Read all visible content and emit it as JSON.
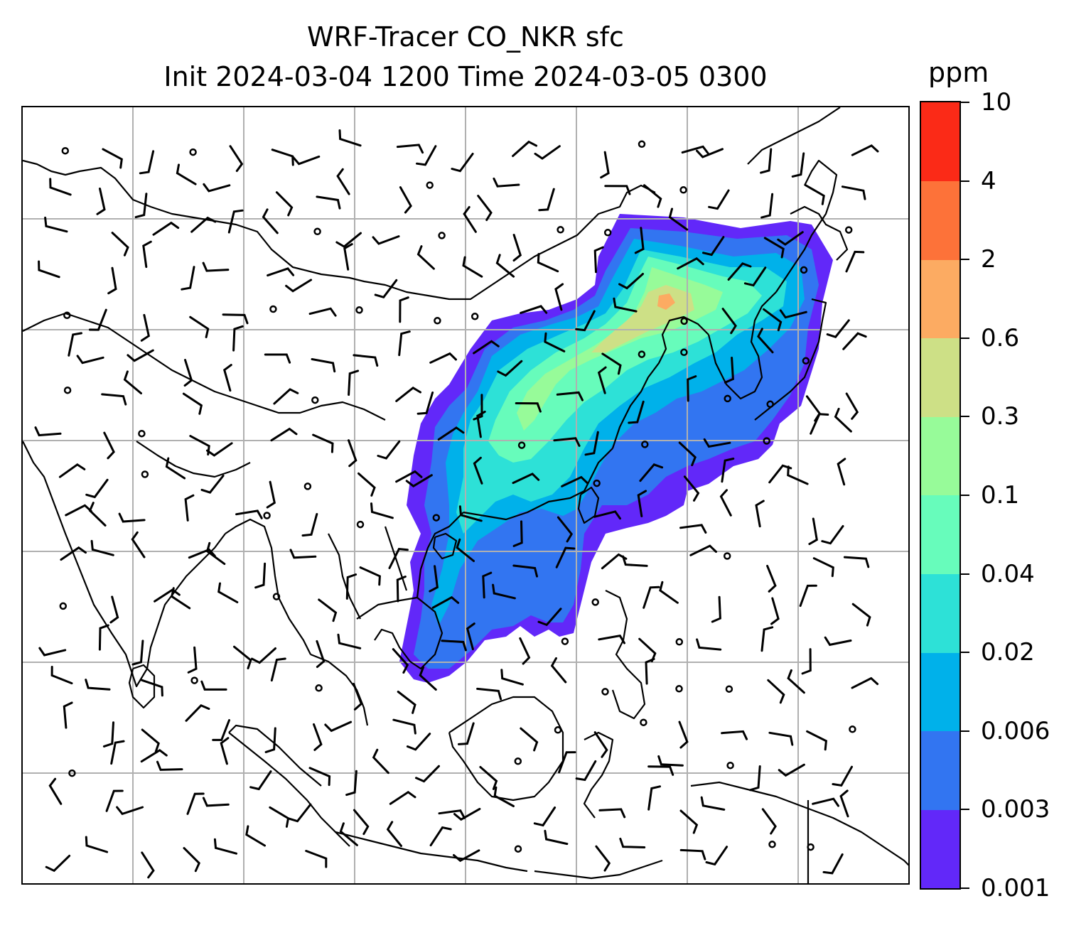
{
  "title": {
    "line1": "WRF-Tracer CO_NKR sfc",
    "line2": "Init 2024-03-04 1200 Time 2024-03-05 0300"
  },
  "map": {
    "field": "CO_NKR",
    "level": "sfc",
    "gridlines": true,
    "grid_color": "#b0b0b0",
    "coast_color": "#000000",
    "wind_barbs": true
  },
  "colorbar": {
    "unit": "ppm",
    "ticks": [
      "0.001",
      "0.003",
      "0.006",
      "0.02",
      "0.04",
      "0.1",
      "0.3",
      "0.6",
      "2",
      "4",
      "10"
    ],
    "colors": [
      "#6228f9",
      "#3275f1",
      "#00b1ea",
      "#2de1d7",
      "#67fcbb",
      "#97fb99",
      "#cde086",
      "#fcab62",
      "#fd7239",
      "#fb2a17"
    ]
  }
}
